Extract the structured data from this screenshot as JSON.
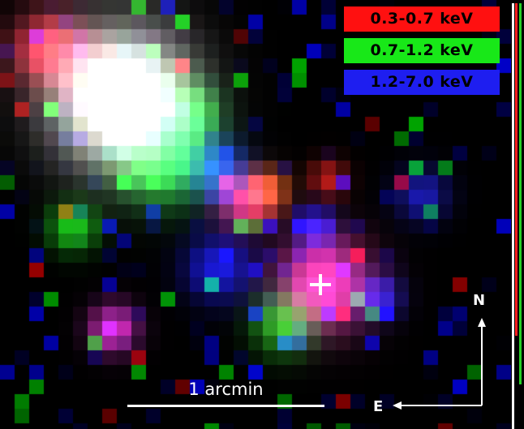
{
  "legend": {
    "red": {
      "label": "0.3-0.7 keV",
      "color": "#ff1010"
    },
    "green": {
      "label": "0.7-1.2 keV",
      "color": "#18e818"
    },
    "blue": {
      "label": "1.2-7.0 keV",
      "color": "#1e1ef0"
    }
  },
  "scale_bar": {
    "label": "1 arcmin"
  },
  "compass": {
    "north": "N",
    "east": "E"
  },
  "marker": {
    "shape": "cross",
    "color": "#ffffff"
  },
  "palette": {
    "background": "#000000",
    "white": "#ffffff",
    "red": "#ff2020",
    "green": "#27d127",
    "blue": "#2030ff",
    "magenta": "#ff30c0",
    "cyan": "#60e0ff"
  }
}
